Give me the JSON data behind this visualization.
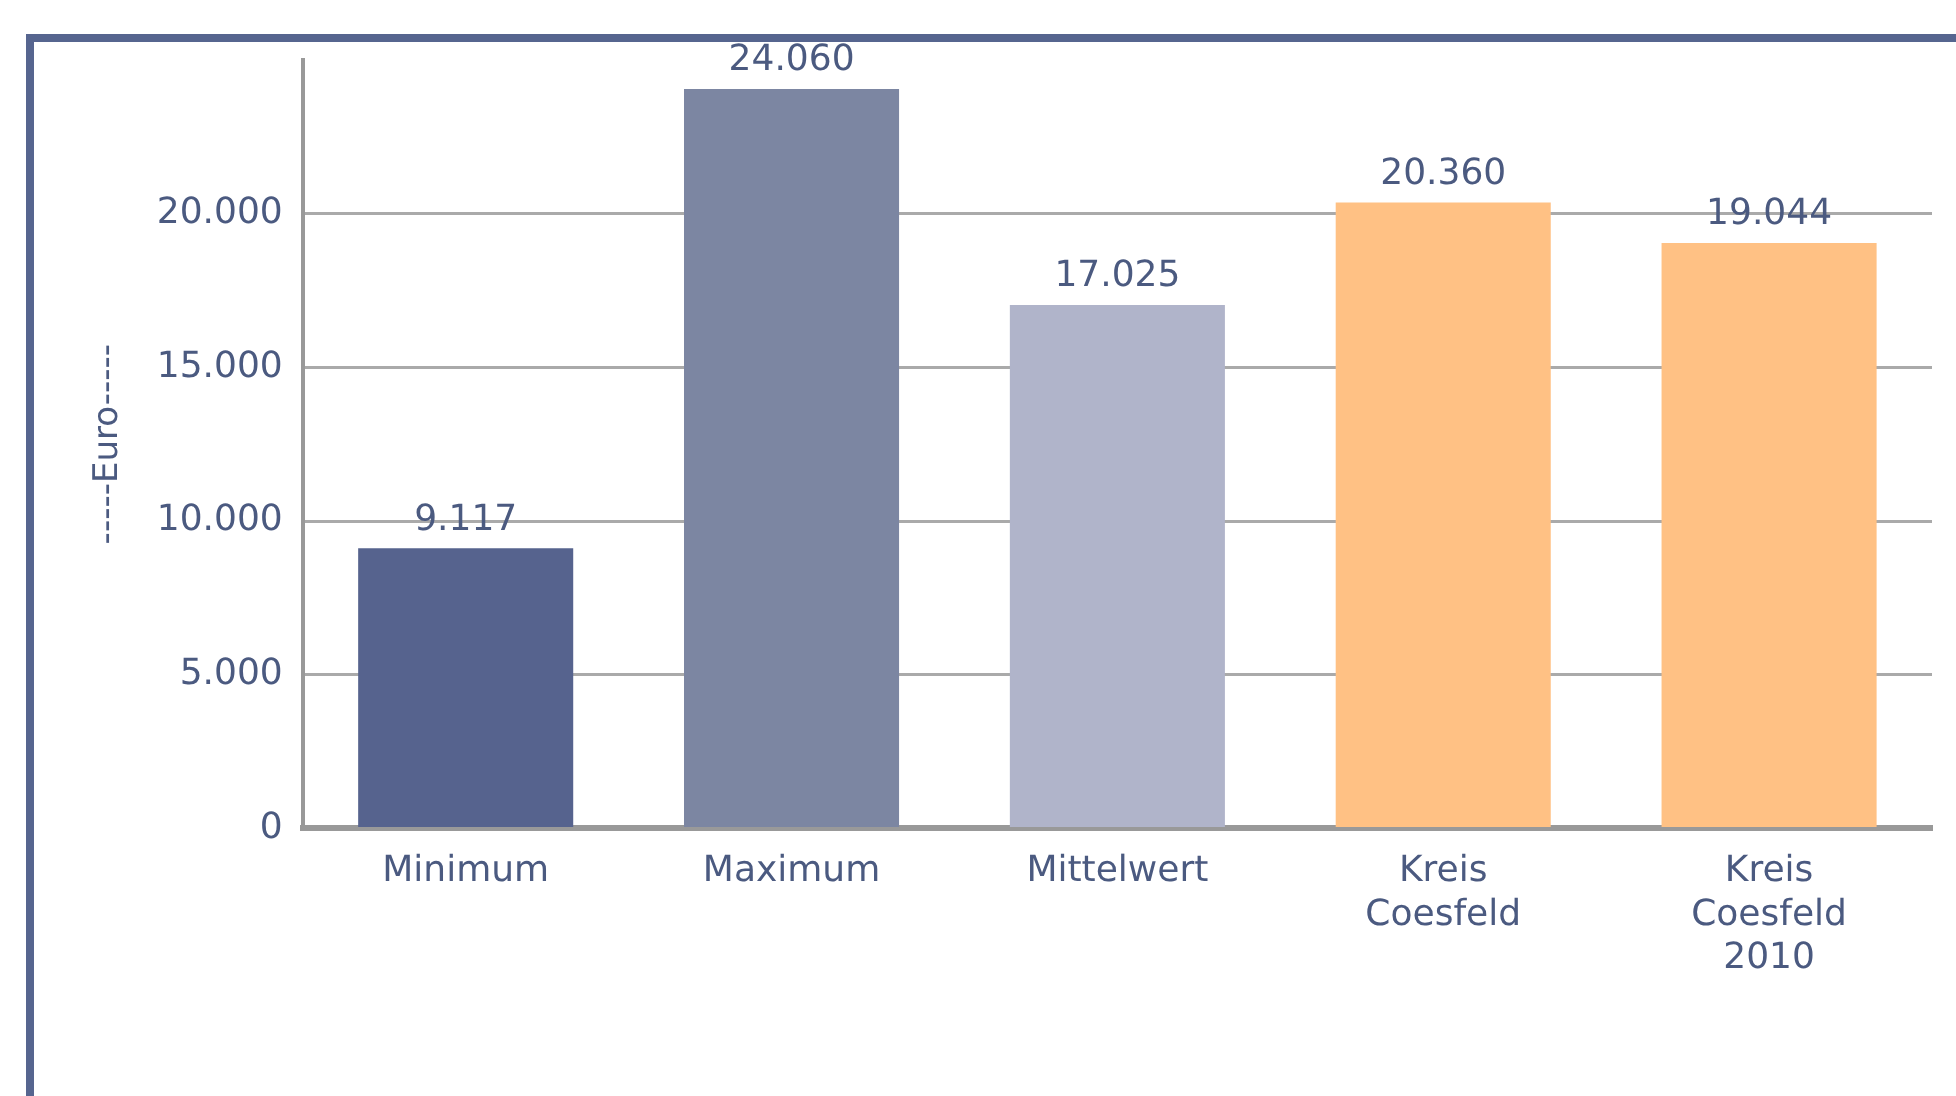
{
  "chart_data": {
    "type": "bar",
    "ylabel": "-----Euro-----",
    "categories": [
      "Minimum",
      "Maximum",
      "Mittelwert",
      "Kreis Coesfeld",
      "Kreis Coesfeld 2010"
    ],
    "values": [
      9117,
      24060,
      17025,
      20360,
      19044
    ],
    "colors": [
      "#56638e",
      "#7c86a2",
      "#b0b4ca",
      "#ffc184",
      "#ffc184"
    ],
    "value_labels": [
      "9.117",
      "24.060",
      "17.025",
      "20.360",
      "19.044"
    ],
    "ylim": [
      0,
      25000
    ],
    "yticks": [
      {
        "value": 0,
        "label": "0"
      },
      {
        "value": 5000,
        "label": "5.000"
      },
      {
        "value": 10000,
        "label": "10.000"
      },
      {
        "value": 15000,
        "label": "15.000"
      },
      {
        "value": 20000,
        "label": "20.000"
      }
    ],
    "grid": "y",
    "legend": false
  }
}
